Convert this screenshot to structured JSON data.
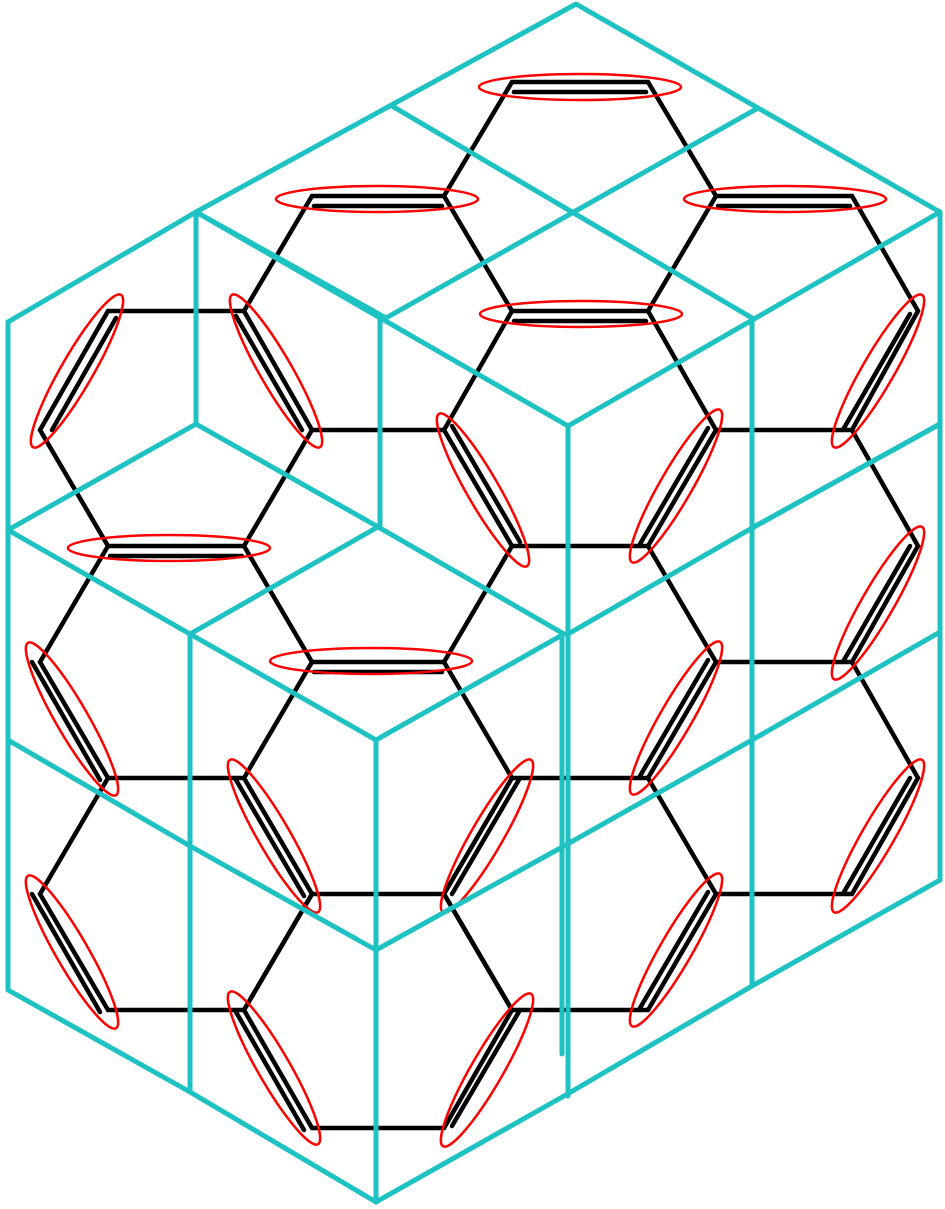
{
  "diagram": {
    "description_colors": {
      "cube_edges": "#1fc2c2",
      "honeycomb_bonds": "#000000",
      "dimer_ellipses": "#ff0000",
      "background": "#ffffff"
    },
    "components": [
      "cube-lattice",
      "honeycomb-lattice",
      "dimer-markers"
    ]
  }
}
